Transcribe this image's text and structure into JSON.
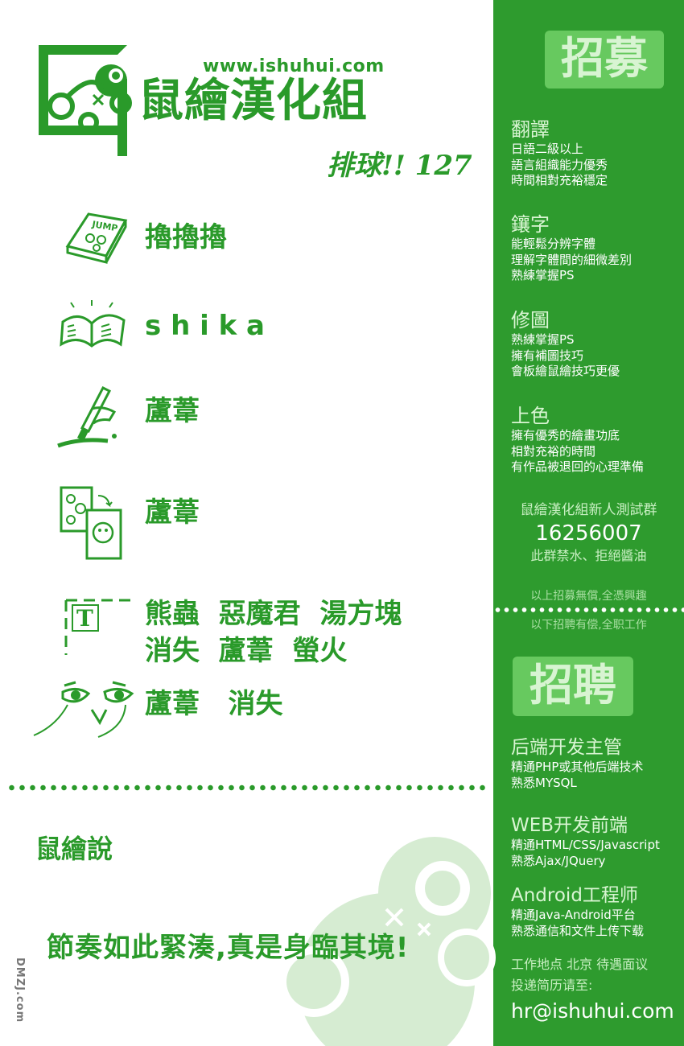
{
  "logo": {
    "url": "www.ishuhui.com",
    "name": "鼠繪漢化組",
    "icon": "mouse-logo-icon"
  },
  "issue": "排球!! 127",
  "credits": [
    {
      "icon": "jump-magazine-icon",
      "names": "擼擼擼"
    },
    {
      "icon": "open-book-icon",
      "names": "s h i k a"
    },
    {
      "icon": "brush-hand-icon",
      "names": "蘆葦"
    },
    {
      "icon": "page-swap-icon",
      "names": "蘆葦"
    },
    {
      "icon": "text-tool-icon",
      "names": "熊蟲  惡魔君  湯方塊\n消失  蘆葦  螢火"
    },
    {
      "icon": "eyes-icon",
      "names": "蘆葦   消失"
    }
  ],
  "comment": {
    "label": "鼠繪說",
    "text": "節奏如此緊湊,真是身臨其境!"
  },
  "watermark": "DMZJ.com",
  "sidebar": {
    "volunteer_badge": "招募",
    "volunteer_roles": [
      {
        "title": "翻譯",
        "lines": [
          "日語二級以上",
          "語言組織能力優秀",
          "時間相對充裕穩定"
        ]
      },
      {
        "title": "鑲字",
        "lines": [
          "能輕鬆分辨字體",
          "理解字體間的細微差別",
          "熟練掌握PS"
        ]
      },
      {
        "title": "修圖",
        "lines": [
          "熟練掌握PS",
          "擁有補圖技巧",
          "會板繪鼠繪技巧更優"
        ]
      },
      {
        "title": "上色",
        "lines": [
          "擁有優秀的繪畫功底",
          "相對充裕的時間",
          "有作品被退回的心理準備"
        ]
      }
    ],
    "group": {
      "label": "鼠繪漢化組新人測試群",
      "number": "16256007",
      "rule": "此群禁水、拒絕醬油"
    },
    "note_unpaid": "以上招募無償,全憑興趣",
    "note_paid": "以下招聘有偿,全职工作",
    "hire_badge": "招聘",
    "paid_roles": [
      {
        "title": "后端开发主管",
        "lines": [
          "精通PHP或其他后端技术",
          "熟悉MYSQL"
        ]
      },
      {
        "title": "WEB开发前端",
        "lines": [
          "精通HTML/CSS/Javascript",
          "熟悉Ajax/JQuery"
        ]
      },
      {
        "title": "Android工程师",
        "lines": [
          "精通Java-Android平台",
          "熟悉通信和文件上传下载"
        ]
      }
    ],
    "contact": {
      "location": "工作地点 北京 待遇面议",
      "send": "投递简历请至:",
      "email": "hr@ishuhui.com"
    }
  },
  "colors": {
    "green": "#2a9a2a",
    "sidebar": "#2e9b2e",
    "badge": "#67c95f"
  }
}
